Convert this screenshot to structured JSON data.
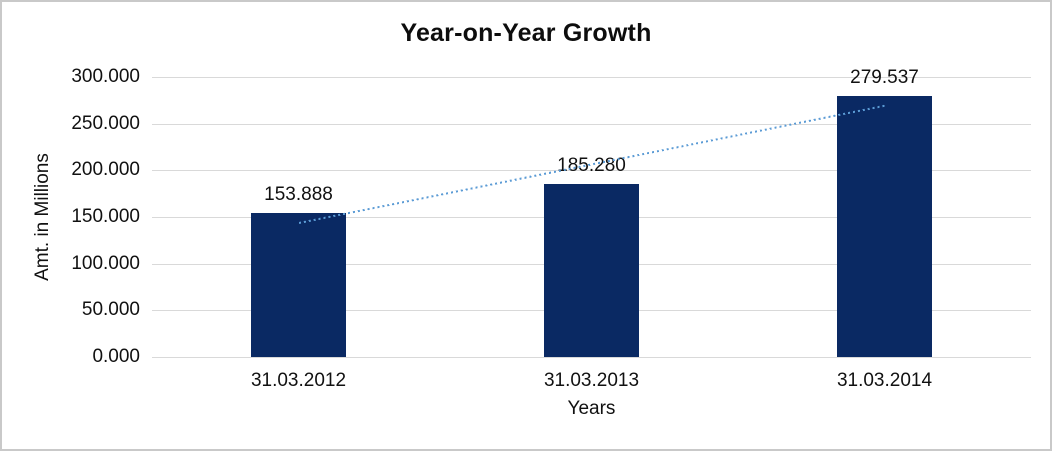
{
  "chart_data": {
    "type": "bar",
    "title": "Year-on-Year Growth",
    "xlabel": "Years",
    "ylabel": "Amt. in Millions",
    "categories": [
      "31.03.2012",
      "31.03.2013",
      "31.03.2014"
    ],
    "values": [
      153.888,
      185.28,
      279.537
    ],
    "value_labels": [
      "153.888",
      "185.280",
      "279.537"
    ],
    "ylim": [
      0,
      300
    ],
    "ytick_interval": 50,
    "ytick_labels": [
      "0.000",
      "50.000",
      "100.000",
      "150.000",
      "200.000",
      "250.000",
      "300.000"
    ],
    "grid": true,
    "legend_position": "none",
    "bar_color": "#0a2963",
    "gridline_color": "#d9d9d9",
    "axis_line_color": "#d9d9d9",
    "trendline": {
      "type": "linear",
      "style": "dotted",
      "color": "#5b9bd5"
    }
  },
  "page": {
    "background_color": "#ffffff",
    "border_color": "#c9c9c9"
  }
}
